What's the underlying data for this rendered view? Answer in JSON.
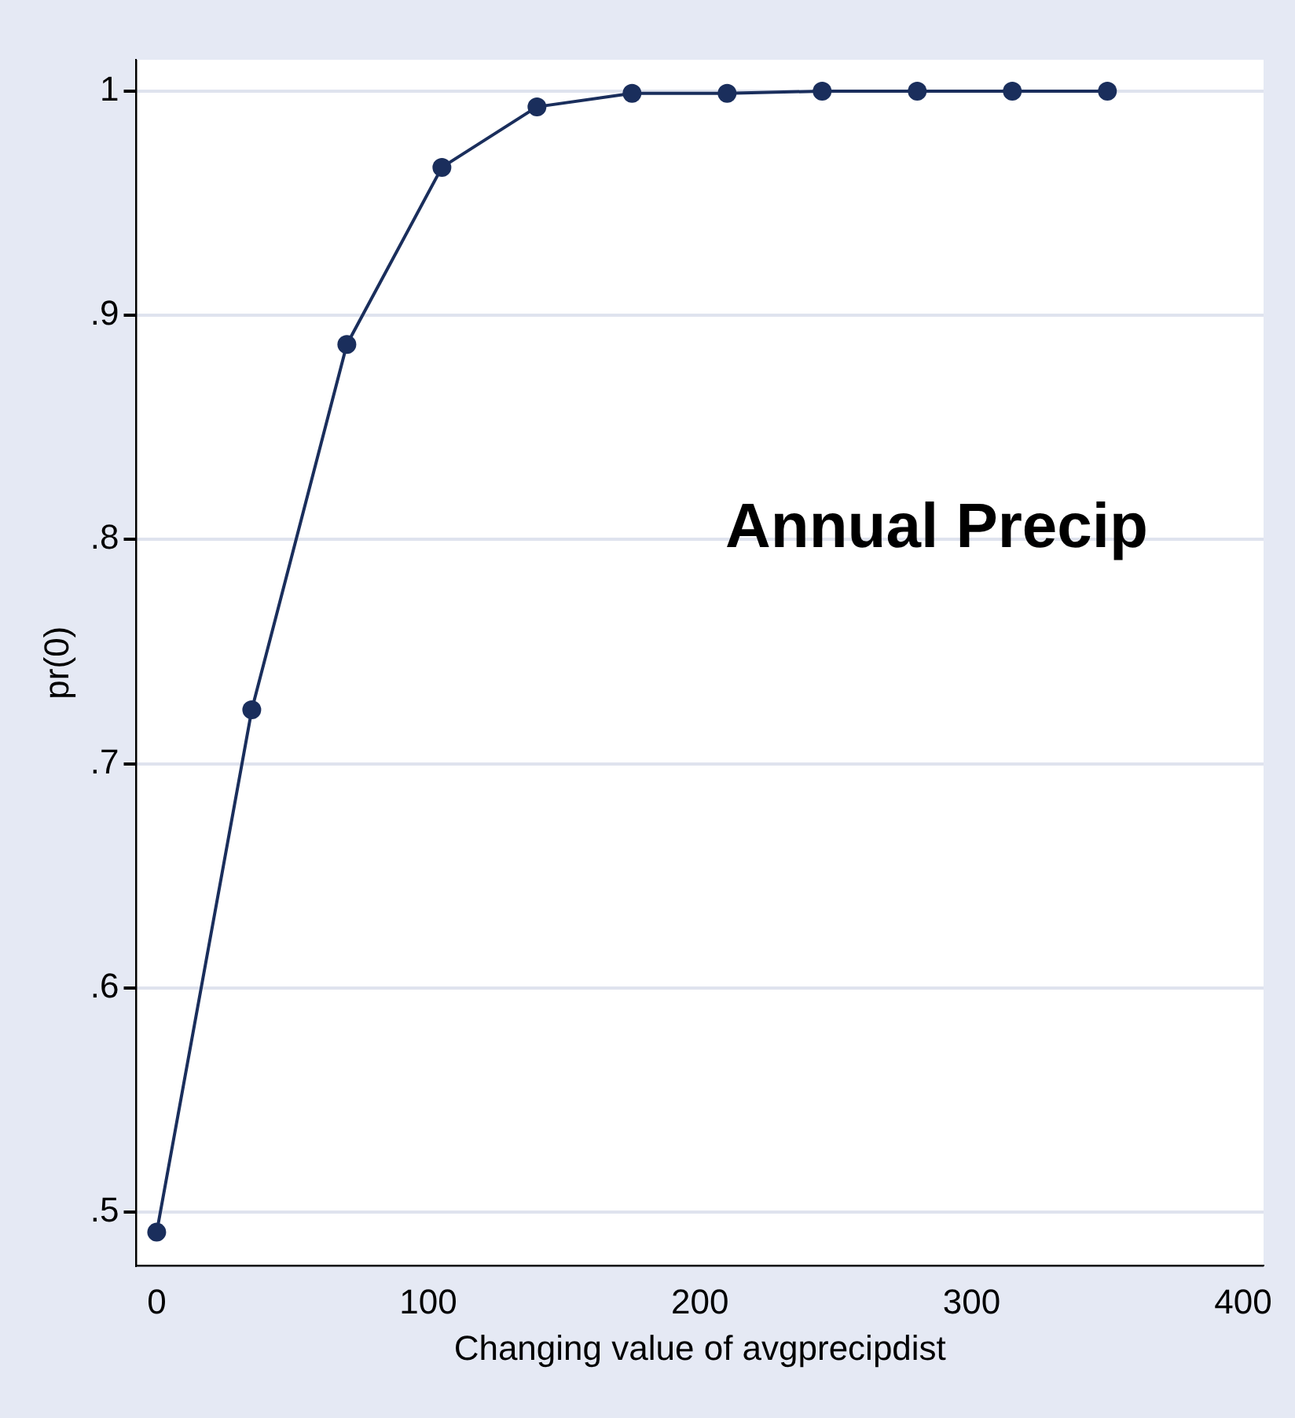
{
  "chart_data": {
    "type": "line",
    "xlabel": "Changing value of avgprecipdist",
    "ylabel": "pr(0)",
    "annotations": [
      "Annual Precip"
    ],
    "x": [
      0,
      35,
      70,
      105,
      140,
      175,
      210,
      245,
      280,
      315,
      350
    ],
    "series": [
      {
        "color": "#1a2e5c",
        "values": [
          0.491,
          0.724,
          0.887,
          0.966,
          0.993,
          0.999,
          0.999,
          1.0,
          1.0,
          1.0,
          1.0
        ]
      }
    ],
    "xlim": [
      -7.5,
      407.5
    ],
    "xticks": [
      0,
      100,
      200,
      300,
      400
    ],
    "ylim": [
      0.476,
      1.014
    ],
    "yticks": [
      {
        "value": 0.5,
        "label": ".5"
      },
      {
        "value": 0.6,
        "label": ".6"
      },
      {
        "value": 0.7,
        "label": ".7"
      },
      {
        "value": 0.8,
        "label": ".8"
      },
      {
        "value": 0.9,
        "label": ".9"
      },
      {
        "value": 1,
        "label": "1"
      }
    ],
    "grid": "y",
    "legend": false,
    "marker": "circle",
    "line_style": "solid"
  }
}
